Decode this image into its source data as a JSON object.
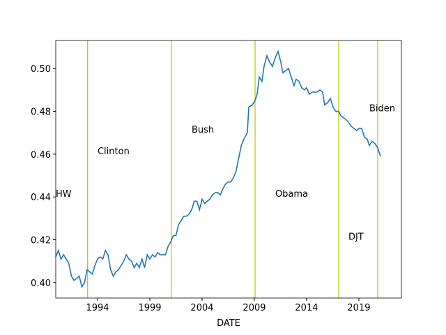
{
  "chart_data": {
    "type": "line",
    "xlabel": "DATE",
    "x": [
      1990,
      1990.25,
      1990.5,
      1990.75,
      1991,
      1991.25,
      1991.5,
      1991.75,
      1992,
      1992.25,
      1992.5,
      1992.75,
      1993,
      1993.25,
      1993.5,
      1993.75,
      1994,
      1994.25,
      1994.5,
      1994.75,
      1995,
      1995.25,
      1995.5,
      1995.75,
      1996,
      1996.25,
      1996.5,
      1996.75,
      1997,
      1997.25,
      1997.5,
      1997.75,
      1998,
      1998.25,
      1998.5,
      1998.75,
      1999,
      1999.25,
      1999.5,
      1999.75,
      2000,
      2000.25,
      2000.5,
      2000.75,
      2001,
      2001.25,
      2001.5,
      2001.75,
      2002,
      2002.25,
      2002.5,
      2002.75,
      2003,
      2003.25,
      2003.5,
      2003.75,
      2004,
      2004.25,
      2004.5,
      2004.75,
      2005,
      2005.25,
      2005.5,
      2005.75,
      2006,
      2006.25,
      2006.5,
      2006.75,
      2007,
      2007.25,
      2007.5,
      2007.75,
      2008,
      2008.33,
      2008.47,
      2008.8,
      2009.07,
      2009.27,
      2009.47,
      2009.73,
      2009.93,
      2010.2,
      2010.47,
      2010.73,
      2011,
      2011.27,
      2011.53,
      2011.73,
      2012,
      2012.27,
      2012.53,
      2012.8,
      2013,
      2013.27,
      2013.53,
      2013.8,
      2014,
      2014.27,
      2014.53,
      2014.8,
      2015,
      2015.27,
      2015.53,
      2015.73,
      2016,
      2016.27,
      2016.53,
      2016.8,
      2017.07,
      2017.27,
      2017.53,
      2017.8,
      2018,
      2018.27,
      2018.53,
      2018.8,
      2019,
      2019.27,
      2019.53,
      2019.8,
      2020,
      2020.27,
      2020.53,
      2020.8,
      2021.07
    ],
    "series": [
      {
        "color": "#1f77b4",
        "values": [
          0.412,
          0.415,
          0.411,
          0.413,
          0.411,
          0.409,
          0.403,
          0.401,
          0.402,
          0.403,
          0.398,
          0.4,
          0.406,
          0.405,
          0.404,
          0.408,
          0.411,
          0.412,
          0.411,
          0.415,
          0.413,
          0.406,
          0.403,
          0.405,
          0.406,
          0.408,
          0.41,
          0.413,
          0.411,
          0.41,
          0.407,
          0.409,
          0.407,
          0.411,
          0.407,
          0.413,
          0.411,
          0.413,
          0.412,
          0.414,
          0.413,
          0.413,
          0.413,
          0.417,
          0.419,
          0.422,
          0.422,
          0.427,
          0.429,
          0.431,
          0.431,
          0.432,
          0.434,
          0.438,
          0.438,
          0.434,
          0.439,
          0.437,
          0.438,
          0.439,
          0.441,
          0.442,
          0.442,
          0.441,
          0.444,
          0.446,
          0.447,
          0.447,
          0.449,
          0.452,
          0.458,
          0.464,
          0.467,
          0.47,
          0.482,
          0.483,
          0.485,
          0.488,
          0.496,
          0.494,
          0.501,
          0.506,
          0.503,
          0.501,
          0.505,
          0.508,
          0.503,
          0.498,
          0.499,
          0.5,
          0.496,
          0.492,
          0.495,
          0.494,
          0.491,
          0.49,
          0.491,
          0.488,
          0.489,
          0.489,
          0.489,
          0.49,
          0.489,
          0.483,
          0.484,
          0.486,
          0.482,
          0.48,
          0.48,
          0.478,
          0.477,
          0.476,
          0.475,
          0.473,
          0.472,
          0.471,
          0.472,
          0.472,
          0.468,
          0.467,
          0.464,
          0.466,
          0.465,
          0.463,
          0.459
        ]
      }
    ],
    "vlines": [
      1993.05,
      2001.05,
      2009.07,
      2017.07,
      2020.8
    ],
    "vline_color": "#bfbf00",
    "annotations": [
      {
        "text": "HW",
        "x": 1990,
        "y": 0.44
      },
      {
        "text": "Clinton",
        "x": 1994,
        "y": 0.46
      },
      {
        "text": "Bush",
        "x": 2003,
        "y": 0.47
      },
      {
        "text": "Obama",
        "x": 2011,
        "y": 0.44
      },
      {
        "text": "DJT",
        "x": 2018,
        "y": 0.42
      },
      {
        "text": "Biden",
        "x": 2020,
        "y": 0.48
      }
    ],
    "xlim": [
      1990,
      2023.07
    ],
    "ylim": [
      0.3928,
      0.5131
    ],
    "xticks": [
      1994,
      1999,
      2004,
      2009,
      2014,
      2019
    ],
    "yticks": [
      {
        "value": 0.4,
        "label": "0.40"
      },
      0.42,
      0.44,
      0.46,
      0.48,
      {
        "value": 0.5,
        "label": "0.50"
      }
    ]
  }
}
